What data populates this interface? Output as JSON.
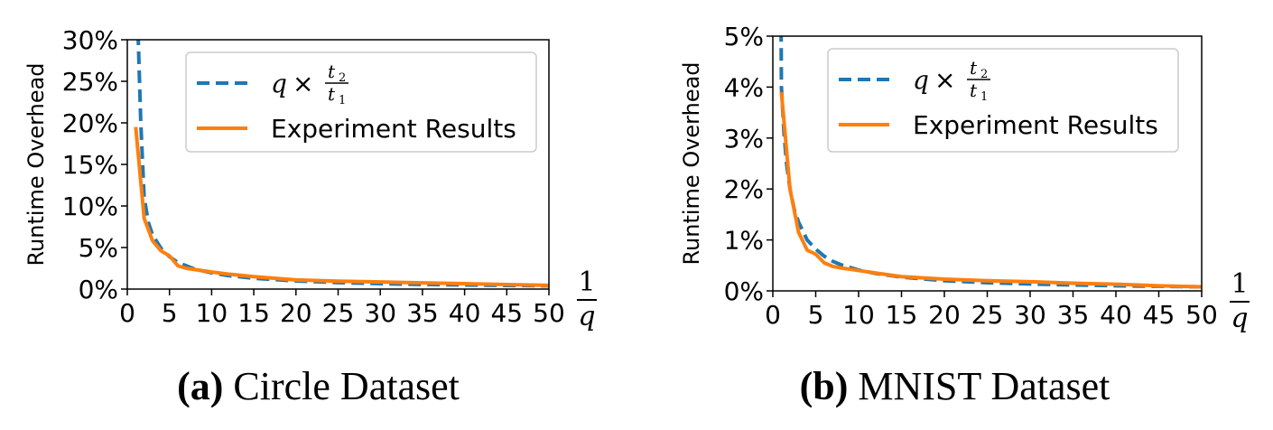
{
  "chart_data": [
    {
      "type": "line",
      "panel_id": "a",
      "caption_letter": "(a)",
      "caption_text": "Circle Dataset",
      "ylabel": "Runtime Overhead",
      "xlabel_num": "1",
      "xlabel_den": "q",
      "xlim": [
        0,
        50
      ],
      "ylim": [
        0,
        30
      ],
      "xticks": [
        "0",
        "5",
        "10",
        "15",
        "20",
        "25",
        "30",
        "35",
        "40",
        "45",
        "50"
      ],
      "yticks": [
        "0%",
        "5%",
        "10%",
        "15%",
        "20%",
        "25%",
        "30%"
      ],
      "legend": {
        "position": "upper-right",
        "formula": {
          "q": "q",
          "times": "×",
          "num": "t",
          "num_sub": "2",
          "den": "t",
          "den_sub": "1"
        },
        "entries": [
          "Experiment Results"
        ]
      },
      "series": [
        {
          "color": "#1f77b4",
          "style": "dashed",
          "x": [
            1,
            1.3,
            1.6,
            2,
            2.5,
            3,
            4,
            5,
            6,
            7,
            8,
            10,
            12,
            15,
            20,
            25,
            30,
            35,
            40,
            45,
            50
          ],
          "y": [
            40,
            30,
            20,
            11,
            8,
            6.5,
            4.9,
            3.9,
            3.2,
            2.8,
            2.4,
            1.95,
            1.62,
            1.3,
            0.98,
            0.78,
            0.65,
            0.56,
            0.49,
            0.43,
            0.39
          ]
        },
        {
          "color": "#ff7f0e",
          "style": "solid",
          "x": [
            1,
            2,
            3,
            4,
            5,
            6,
            7,
            8,
            10,
            12,
            15,
            20,
            25,
            30,
            35,
            40,
            45,
            50
          ],
          "y": [
            19.5,
            8.5,
            5.8,
            4.6,
            4.0,
            2.8,
            2.5,
            2.35,
            2.05,
            1.8,
            1.5,
            1.1,
            0.95,
            0.85,
            0.75,
            0.65,
            0.55,
            0.45
          ]
        }
      ]
    },
    {
      "type": "line",
      "panel_id": "b",
      "caption_letter": "(b)",
      "caption_text": "MNIST Dataset",
      "ylabel": "Runtime Overhead",
      "xlabel_num": "1",
      "xlabel_den": "q",
      "xlim": [
        0,
        50
      ],
      "ylim": [
        0,
        5
      ],
      "xticks": [
        "0",
        "5",
        "10",
        "15",
        "20",
        "25",
        "30",
        "35",
        "40",
        "45",
        "50"
      ],
      "yticks": [
        "0%",
        "1%",
        "2%",
        "3%",
        "4%",
        "5%"
      ],
      "legend": {
        "position": "upper-right",
        "formula": {
          "q": "q",
          "times": "×",
          "num": "t",
          "num_sub": "2",
          "den": "t",
          "den_sub": "1"
        },
        "entries": [
          "Experiment Results"
        ]
      },
      "series": [
        {
          "color": "#1f77b4",
          "style": "dashed",
          "x": [
            0.9,
            1,
            1.3,
            1.6,
            2,
            2.5,
            3,
            4,
            5,
            6,
            7,
            8,
            10,
            12,
            15,
            20,
            25,
            30,
            35,
            40,
            45,
            50
          ],
          "y": [
            7,
            4.0,
            3.1,
            2.5,
            2.0,
            1.6,
            1.35,
            1.0,
            0.82,
            0.68,
            0.58,
            0.51,
            0.41,
            0.34,
            0.27,
            0.2,
            0.16,
            0.135,
            0.115,
            0.1,
            0.09,
            0.08
          ]
        },
        {
          "color": "#ff7f0e",
          "style": "solid",
          "x": [
            1,
            2,
            3,
            4,
            5,
            6,
            7,
            8,
            10,
            12,
            15,
            20,
            25,
            30,
            35,
            40,
            45,
            50
          ],
          "y": [
            3.9,
            2.0,
            1.15,
            0.8,
            0.72,
            0.55,
            0.48,
            0.45,
            0.4,
            0.35,
            0.28,
            0.23,
            0.2,
            0.18,
            0.15,
            0.13,
            0.1,
            0.08
          ]
        }
      ]
    }
  ]
}
